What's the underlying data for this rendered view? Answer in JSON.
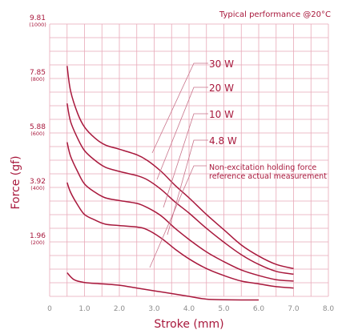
{
  "chart_data": {
    "type": "line",
    "title": "Typical performance @20°C",
    "xlabel": "Stroke (mm)",
    "ylabel": "Force (gf)",
    "xlim": [
      0,
      8
    ],
    "ylim": [
      0,
      9.81
    ],
    "x_ticks": [
      {
        "value": 0,
        "label": "0"
      },
      {
        "value": 1,
        "label": "1.0"
      },
      {
        "value": 2,
        "label": "2.0"
      },
      {
        "value": 3,
        "label": "3.0"
      },
      {
        "value": 4,
        "label": "4.0"
      },
      {
        "value": 5,
        "label": "5.0"
      },
      {
        "value": 6,
        "label": "6.0"
      },
      {
        "value": 7,
        "label": "7.0"
      },
      {
        "value": 8,
        "label": "8.0"
      }
    ],
    "y_ticks": [
      {
        "value": 1.96,
        "label": "1.96",
        "sublabel": "(200)"
      },
      {
        "value": 3.92,
        "label": "3.92",
        "sublabel": "(400)"
      },
      {
        "value": 5.88,
        "label": "5.88",
        "sublabel": "(600)"
      },
      {
        "value": 7.85,
        "label": "7.85",
        "sublabel": "(800)"
      },
      {
        "value": 9.81,
        "label": "9.81",
        "sublabel": "(1000)"
      }
    ],
    "grid": true,
    "series": [
      {
        "name": "30 W",
        "x": [
          0.5,
          0.6,
          0.8,
          1.0,
          1.3,
          1.6,
          2.0,
          2.5,
          2.8,
          3.2,
          3.6,
          4.0,
          4.5,
          5.0,
          5.5,
          6.0,
          6.5,
          7.0
        ],
        "y": [
          8.3,
          7.4,
          6.6,
          6.1,
          5.7,
          5.45,
          5.3,
          5.1,
          4.9,
          4.5,
          4.0,
          3.55,
          2.95,
          2.4,
          1.85,
          1.45,
          1.15,
          1.0
        ]
      },
      {
        "name": "20 W",
        "x": [
          0.5,
          0.6,
          0.8,
          1.0,
          1.3,
          1.6,
          2.0,
          2.5,
          2.8,
          3.2,
          3.6,
          4.0,
          4.5,
          5.0,
          5.5,
          6.0,
          6.5,
          7.0
        ],
        "y": [
          6.95,
          6.3,
          5.7,
          5.25,
          4.9,
          4.65,
          4.5,
          4.35,
          4.2,
          3.85,
          3.4,
          3.0,
          2.45,
          1.95,
          1.5,
          1.15,
          0.9,
          0.8
        ]
      },
      {
        "name": "10 W",
        "x": [
          0.5,
          0.6,
          0.8,
          1.0,
          1.3,
          1.6,
          2.0,
          2.5,
          2.8,
          3.2,
          3.6,
          4.0,
          4.5,
          5.0,
          5.5,
          6.0,
          6.5,
          7.0
        ],
        "y": [
          5.55,
          5.05,
          4.5,
          4.05,
          3.75,
          3.55,
          3.45,
          3.35,
          3.2,
          2.9,
          2.45,
          2.05,
          1.6,
          1.25,
          0.95,
          0.75,
          0.6,
          0.55
        ]
      },
      {
        "name": "4.8 W",
        "x": [
          0.5,
          0.6,
          0.8,
          1.0,
          1.3,
          1.6,
          2.0,
          2.5,
          2.8,
          3.2,
          3.6,
          4.0,
          4.5,
          5.0,
          5.5,
          6.0,
          6.5,
          7.0
        ],
        "y": [
          4.1,
          3.75,
          3.3,
          2.95,
          2.75,
          2.6,
          2.55,
          2.5,
          2.4,
          2.1,
          1.7,
          1.35,
          1.0,
          0.75,
          0.55,
          0.45,
          0.35,
          0.3
        ]
      },
      {
        "name": "Non-excitation holding force reference actual measurement",
        "x": [
          0.5,
          0.7,
          1.0,
          1.5,
          2.0,
          2.5,
          3.0,
          3.5,
          4.0,
          4.5,
          5.0,
          5.5,
          6.0
        ],
        "y": [
          0.85,
          0.6,
          0.5,
          0.45,
          0.4,
          0.3,
          0.2,
          0.1,
          0.0,
          -0.1,
          -0.12,
          -0.13,
          -0.13
        ]
      }
    ],
    "annotations": [
      {
        "text": "30 W",
        "series": 0
      },
      {
        "text": "20 W",
        "series": 1
      },
      {
        "text": "10 W",
        "series": 2
      },
      {
        "text": "4.8 W",
        "series": 3
      },
      {
        "text_lines": [
          "Non-excitation holding force",
          "reference actual measurement"
        ],
        "series": 4
      }
    ],
    "line_color": "#a8183c",
    "grid_color": "#e8a9b8",
    "text_color": "#a8183c",
    "tick_color": "#8c8c8c"
  }
}
